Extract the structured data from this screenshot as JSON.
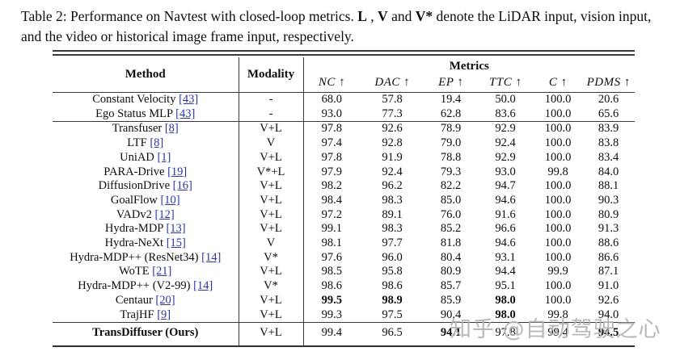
{
  "caption": {
    "segments": [
      {
        "text": "Table 2: Performance on Navtest with closed-loop metrics. ",
        "bold": false
      },
      {
        "text": "L",
        "bold": true
      },
      {
        "text": " , ",
        "bold": false
      },
      {
        "text": "V",
        "bold": true
      },
      {
        "text": " and ",
        "bold": false
      },
      {
        "text": "V*",
        "bold": true
      },
      {
        "text": " denote the LiDAR input, vision input, and the video or historical image frame input, respectively.",
        "bold": false
      }
    ]
  },
  "table": {
    "header": {
      "method": "Method",
      "modality": "Modality",
      "metrics_group": "Metrics",
      "arrow": "↑",
      "metric_columns": [
        "NC",
        "DAC",
        "EP",
        "TTC",
        "C",
        "PDMS"
      ]
    },
    "groups": [
      {
        "name": "baselines",
        "rows": [
          {
            "method": "Constant Velocity",
            "cite": "[43]",
            "modality": "-",
            "values": [
              "68.0",
              "57.8",
              "19.4",
              "50.0",
              "100.0",
              "20.6"
            ],
            "bold": []
          },
          {
            "method": "Ego Status MLP",
            "cite": "[43]",
            "modality": "-",
            "values": [
              "93.0",
              "77.3",
              "62.8",
              "83.6",
              "100.0",
              "65.6"
            ],
            "bold": []
          }
        ]
      },
      {
        "name": "prior-methods",
        "rows": [
          {
            "method": "Transfuser",
            "cite": "[8]",
            "modality": "V+L",
            "values": [
              "97.8",
              "92.6",
              "78.9",
              "92.9",
              "100.0",
              "83.9"
            ],
            "bold": []
          },
          {
            "method": "LTF",
            "cite": "[8]",
            "modality": "V",
            "values": [
              "97.4",
              "92.8",
              "79.0",
              "92.4",
              "100.0",
              "83.8"
            ],
            "bold": []
          },
          {
            "method": "UniAD",
            "cite": "[1]",
            "modality": "V+L",
            "values": [
              "97.8",
              "91.9",
              "78.8",
              "92.9",
              "100.0",
              "83.4"
            ],
            "bold": []
          },
          {
            "method": "PARA-Drive",
            "cite": "[19]",
            "modality": "V*+L",
            "values": [
              "97.9",
              "92.4",
              "79.3",
              "93.0",
              "99.8",
              "84.0"
            ],
            "bold": []
          },
          {
            "method": "DiffusionDrive",
            "cite": "[16]",
            "modality": "V+L",
            "values": [
              "98.2",
              "96.2",
              "82.2",
              "94.7",
              "100.0",
              "88.1"
            ],
            "bold": []
          },
          {
            "method": "GoalFlow",
            "cite": "[10]",
            "modality": "V+L",
            "values": [
              "98.4",
              "98.3",
              "85.0",
              "94.6",
              "100.0",
              "90.3"
            ],
            "bold": []
          },
          {
            "method": "VADv2",
            "cite": "[12]",
            "modality": "V+L",
            "values": [
              "97.2",
              "89.1",
              "76.0",
              "91.6",
              "100.0",
              "80.9"
            ],
            "bold": []
          },
          {
            "method": "Hydra-MDP",
            "cite": "[13]",
            "modality": "V+L",
            "values": [
              "99.1",
              "98.3",
              "85.2",
              "96.6",
              "100.0",
              "91.3"
            ],
            "bold": []
          },
          {
            "method": "Hydra-NeXt",
            "cite": "[15]",
            "modality": "V",
            "values": [
              "98.1",
              "97.7",
              "81.8",
              "94.6",
              "100.0",
              "88.6"
            ],
            "bold": []
          },
          {
            "method": "Hydra-MDP++ (ResNet34)",
            "cite": "[14]",
            "modality": "V*",
            "values": [
              "97.6",
              "96.0",
              "80.4",
              "93.1",
              "100.0",
              "86.6"
            ],
            "bold": []
          },
          {
            "method": "WoTE",
            "cite": "[21]",
            "modality": "V+L",
            "values": [
              "98.5",
              "95.8",
              "80.9",
              "94.4",
              "99.9",
              "87.1"
            ],
            "bold": []
          },
          {
            "method": "Hydra-MDP++ (V2-99)",
            "cite": "[14]",
            "modality": "V*",
            "values": [
              "98.6",
              "98.6",
              "85.7",
              "95.1",
              "100.0",
              "91.0"
            ],
            "bold": []
          },
          {
            "method": "Centaur",
            "cite": "[20]",
            "modality": "V+L",
            "values": [
              "99.5",
              "98.9",
              "85.9",
              "98.0",
              "100.0",
              "92.6"
            ],
            "bold": [
              0,
              1,
              3
            ]
          },
          {
            "method": "TrajHF",
            "cite": "[9]",
            "modality": "V+L",
            "values": [
              "99.3",
              "97.5",
              "90.4",
              "98.0",
              "99.8",
              "94.0"
            ],
            "bold": [
              3
            ]
          }
        ]
      },
      {
        "name": "ours",
        "rows": [
          {
            "method": "TransDiffuser (Ours)",
            "cite": "",
            "modality": "V+L",
            "values": [
              "99.4",
              "96.5",
              "94.1",
              "97.8",
              "99.4",
              "94.5"
            ],
            "bold": [
              2,
              5
            ]
          }
        ]
      }
    ]
  },
  "watermark": {
    "text": "知乎 @自动驾驶之心"
  },
  "colors": {
    "link_blue": "#2a35a8",
    "rule": "#3a3a3a",
    "watermark_gray": "#b2b2b2",
    "text": "#0d0d0d"
  }
}
